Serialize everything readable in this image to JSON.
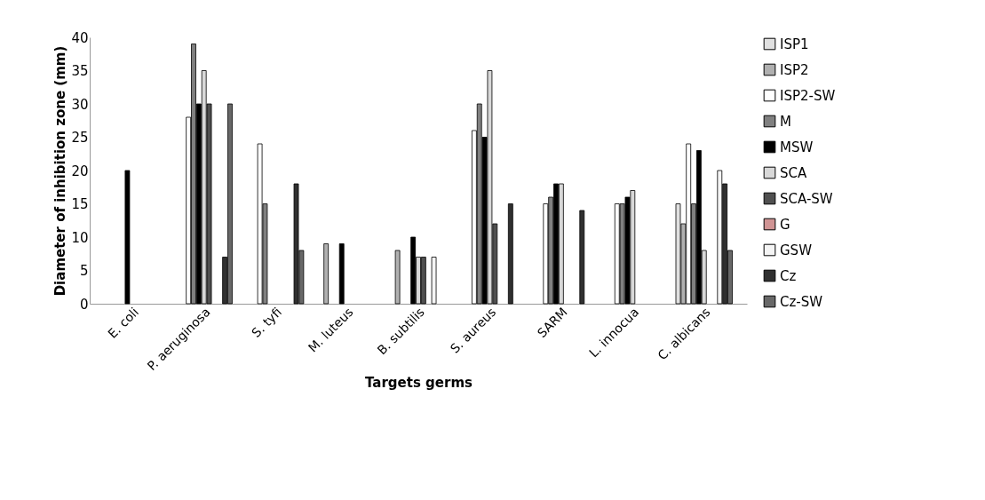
{
  "chart_data": {
    "type": "bar",
    "xlabel": "Targets germs",
    "ylabel": "Diameter of inhibition zone (mm)",
    "categories": [
      "E. coli",
      "P. aeruginosa",
      "S. tyfi",
      "M. luteus",
      "B. subtilis",
      "S. aureus",
      "SARM",
      "L. innocua",
      "C. albicans"
    ],
    "series": [
      {
        "name": "ISP1",
        "color": "#e0e0e0",
        "values": [
          0,
          0,
          0,
          0,
          0,
          0,
          0,
          0,
          15
        ]
      },
      {
        "name": "ISP2",
        "color": "#b0b0b0",
        "values": [
          0,
          0,
          0,
          9,
          8,
          0,
          0,
          0,
          12
        ]
      },
      {
        "name": "ISP2-SW",
        "color": "#ffffff",
        "values": [
          0,
          28,
          24,
          0,
          0,
          26,
          15,
          15,
          24
        ]
      },
      {
        "name": "M",
        "color": "#808080",
        "values": [
          0,
          39,
          15,
          0,
          0,
          30,
          16,
          15,
          15
        ]
      },
      {
        "name": "MSW",
        "color": "#000000",
        "values": [
          20,
          30,
          0,
          9,
          10,
          25,
          18,
          16,
          23
        ]
      },
      {
        "name": "SCA",
        "color": "#d8d8d8",
        "values": [
          0,
          35,
          0,
          0,
          7,
          35,
          18,
          17,
          8
        ]
      },
      {
        "name": "SCA-SW",
        "color": "#505050",
        "values": [
          0,
          30,
          0,
          0,
          7,
          12,
          0,
          0,
          0
        ]
      },
      {
        "name": "G",
        "color": "#d09494",
        "values": [
          0,
          0,
          0,
          0,
          0,
          0,
          0,
          0,
          0
        ]
      },
      {
        "name": "GSW",
        "color": "#f4f4f4",
        "values": [
          0,
          0,
          0,
          0,
          7,
          0,
          0,
          0,
          20
        ]
      },
      {
        "name": "Cz",
        "color": "#303030",
        "values": [
          0,
          7,
          18,
          0,
          0,
          15,
          14,
          0,
          18
        ]
      },
      {
        "name": "Cz-SW",
        "color": "#686868",
        "values": [
          0,
          30,
          8,
          0,
          0,
          0,
          0,
          0,
          8
        ]
      }
    ],
    "ylim": [
      0,
      40
    ],
    "yticks": [
      0,
      5,
      10,
      15,
      20,
      25,
      30,
      35,
      40
    ],
    "grid": false,
    "legend": "right"
  }
}
